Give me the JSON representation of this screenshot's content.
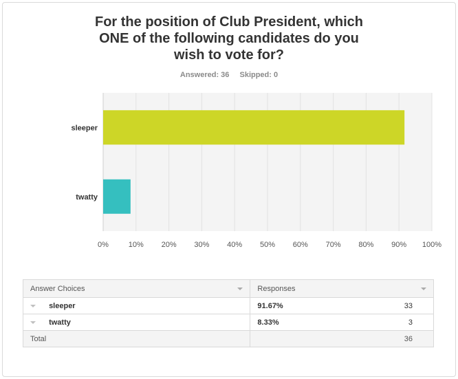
{
  "title_lines": [
    "For the position of Club President, which",
    "ONE of the following candidates do you",
    "wish to vote for?"
  ],
  "answered_label": "Answered: 36",
  "skipped_label": "Skipped: 0",
  "chart_data": {
    "type": "bar",
    "orientation": "horizontal",
    "categories": [
      "sleeper",
      "twatty"
    ],
    "values": [
      91.67,
      8.33
    ],
    "colors": [
      "#cdd627",
      "#35bfbf"
    ],
    "xlim": [
      0,
      100
    ],
    "xticks": [
      "0%",
      "10%",
      "20%",
      "30%",
      "40%",
      "50%",
      "60%",
      "70%",
      "80%",
      "90%",
      "100%"
    ],
    "grid": true
  },
  "table": {
    "header": {
      "choices": "Answer Choices",
      "responses": "Responses"
    },
    "rows": [
      {
        "choice": "sleeper",
        "percent": "91.67%",
        "count": "33"
      },
      {
        "choice": "twatty",
        "percent": "8.33%",
        "count": "3"
      }
    ],
    "total": {
      "label": "Total",
      "count": "36"
    }
  }
}
